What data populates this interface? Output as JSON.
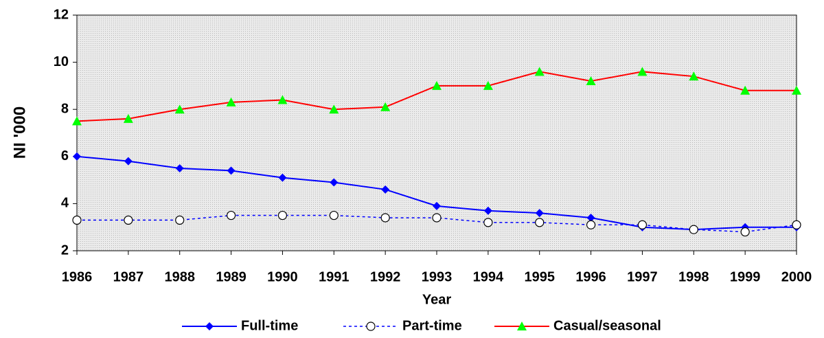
{
  "chart_data": {
    "type": "line",
    "x_label": "Year",
    "y_label": "NI '000",
    "x": [
      1986,
      1987,
      1988,
      1989,
      1990,
      1991,
      1992,
      1993,
      1994,
      1995,
      1996,
      1997,
      1998,
      1999,
      2000
    ],
    "xlim": [
      1986,
      2000
    ],
    "xticks": [
      1986,
      1987,
      1988,
      1989,
      1990,
      1991,
      1992,
      1993,
      1994,
      1995,
      1996,
      1997,
      1998,
      1999,
      2000
    ],
    "ylim": [
      2,
      12
    ],
    "yticks": [
      2,
      4,
      6,
      8,
      10,
      12
    ],
    "legend": "bottom",
    "grid": false,
    "series": [
      {
        "name": "Full-time",
        "color": "#0000ff",
        "marker": "diamond",
        "dashed": false,
        "values": [
          6.0,
          5.8,
          5.5,
          5.4,
          5.1,
          4.9,
          4.6,
          3.9,
          3.7,
          3.6,
          3.4,
          3.0,
          2.9,
          3.0,
          3.0
        ]
      },
      {
        "name": "Part-time",
        "color": "#0000ff",
        "marker": "circle",
        "dashed": true,
        "values": [
          3.3,
          3.3,
          3.3,
          3.5,
          3.5,
          3.5,
          3.4,
          3.4,
          3.2,
          3.2,
          3.1,
          3.1,
          2.9,
          2.8,
          3.1
        ]
      },
      {
        "name": "Casual/seasonal",
        "color": "#ff0000",
        "marker": "triangle",
        "dashed": false,
        "values": [
          7.5,
          7.6,
          8.0,
          8.3,
          8.4,
          8.0,
          8.1,
          9.0,
          9.0,
          9.6,
          9.2,
          9.6,
          9.4,
          8.8,
          8.8
        ]
      }
    ]
  }
}
